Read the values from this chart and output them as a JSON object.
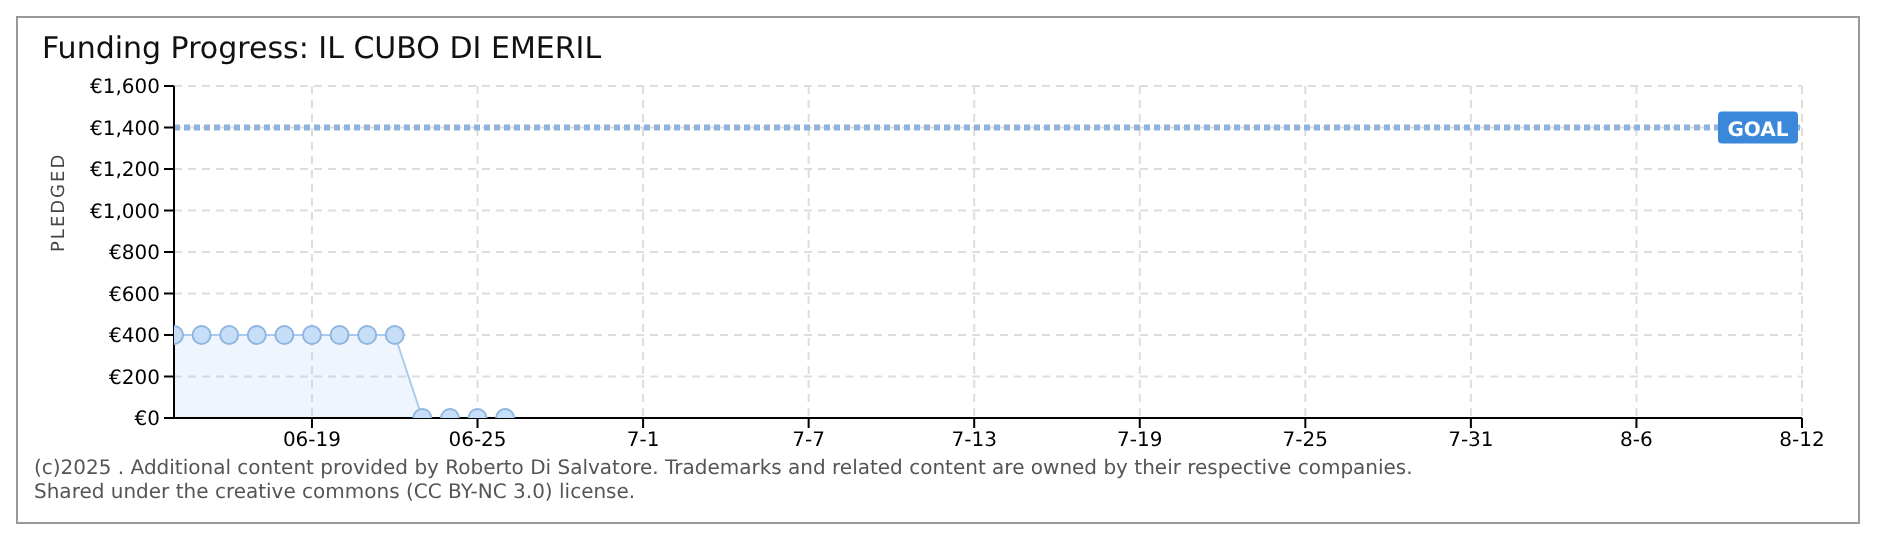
{
  "chart_data": {
    "type": "area",
    "title": "Funding Progress: IL CUBO DI EMERIL",
    "ylabel": "PLEDGED",
    "x": [
      "--06-14",
      "--06-15",
      "--06-16",
      "--06-17",
      "--06-18",
      "--06-19",
      "--06-20",
      "--06-21",
      "--06-22",
      "--06-23",
      "--06-24",
      "--06-25",
      "--06-26"
    ],
    "series": [
      {
        "color": "#a9cbf0",
        "values": [
          400,
          400,
          400,
          400,
          400,
          400,
          400,
          400,
          400,
          0,
          0,
          0,
          0
        ]
      }
    ],
    "xlim": [
      "--06-14",
      "--08-12"
    ],
    "xticks": [
      {
        "value": "--06-19",
        "label": "06-19"
      },
      {
        "value": "--06-25",
        "label": "06-25"
      },
      {
        "value": "--07-01",
        "label": "7-1"
      },
      {
        "value": "--07-07",
        "label": "7-7"
      },
      {
        "value": "--07-13",
        "label": "7-13"
      },
      {
        "value": "--07-19",
        "label": "7-19"
      },
      {
        "value": "--07-25",
        "label": "7-25"
      },
      {
        "value": "--07-31",
        "label": "7-31"
      },
      {
        "value": "--08-06",
        "label": "8-6"
      },
      {
        "value": "--08-12",
        "label": "8-12"
      }
    ],
    "ylim": [
      0,
      1600
    ],
    "yticks": [
      {
        "value": 0,
        "label": "€0"
      },
      {
        "value": 200,
        "label": "€200"
      },
      {
        "value": 400,
        "label": "€400"
      },
      {
        "value": 600,
        "label": "€600"
      },
      {
        "value": 800,
        "label": "€800"
      },
      {
        "value": 1000,
        "label": "€1,000"
      },
      {
        "value": 1200,
        "label": "€1,200"
      },
      {
        "value": 1400,
        "label": "€1,400"
      },
      {
        "value": 1600,
        "label": "€1,600"
      }
    ],
    "ref_lines": [
      {
        "axis": "y",
        "value": 1400,
        "label": "GOAL",
        "color": "#8fb3dd",
        "line_style": "dotted"
      }
    ],
    "grid": true,
    "marker": "circle",
    "legend": false,
    "annotations": [
      "(c)2025 . Additional content provided by Roberto Di Salvatore. Trademarks and related content are owned by their respective companies.",
      "Shared under the creative commons (CC BY-NC 3.0) license."
    ]
  }
}
